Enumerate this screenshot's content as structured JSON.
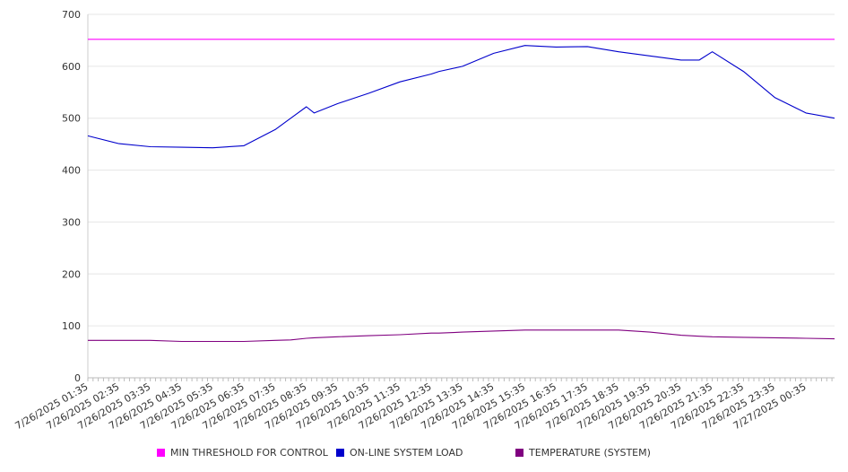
{
  "chart_data": {
    "type": "line",
    "title": "",
    "xlabel": "",
    "ylabel": "",
    "ylim": [
      0,
      700
    ],
    "yticks": [
      0,
      100,
      200,
      300,
      400,
      500,
      600,
      700
    ],
    "grid": true,
    "legend_position": "bottom",
    "x_tick_labels": [
      "7/26/2025 01:35",
      "7/26/2025 02:35",
      "7/26/2025 03:35",
      "7/26/2025 04:35",
      "7/26/2025 05:35",
      "7/26/2025 06:35",
      "7/26/2025 07:35",
      "7/26/2025 08:35",
      "7/26/2025 09:35",
      "7/26/2025 10:35",
      "7/26/2025 11:35",
      "7/26/2025 12:35",
      "7/26/2025 13:35",
      "7/26/2025 14:35",
      "7/26/2025 15:35",
      "7/26/2025 16:35",
      "7/26/2025 17:35",
      "7/26/2025 18:35",
      "7/26/2025 19:35",
      "7/26/2025 20:35",
      "7/26/2025 21:35",
      "7/26/2025 22:35",
      "7/26/2025 23:35",
      "7/27/2025 00:35"
    ],
    "x": [
      "7/26/2025 01:35",
      "7/26/2025 02:35",
      "7/26/2025 03:35",
      "7/26/2025 04:35",
      "7/26/2025 05:35",
      "7/26/2025 06:35",
      "7/26/2025 07:35",
      "7/26/2025 08:05",
      "7/26/2025 08:35",
      "7/26/2025 08:50",
      "7/26/2025 09:35",
      "7/26/2025 10:35",
      "7/26/2025 11:35",
      "7/26/2025 12:35",
      "7/26/2025 12:50",
      "7/26/2025 13:35",
      "7/26/2025 14:35",
      "7/26/2025 15:35",
      "7/26/2025 16:35",
      "7/26/2025 17:35",
      "7/26/2025 18:35",
      "7/26/2025 19:35",
      "7/26/2025 20:35",
      "7/26/2025 21:10",
      "7/26/2025 21:35",
      "7/26/2025 22:35",
      "7/26/2025 23:35",
      "7/27/2025 00:35",
      "7/27/2025 01:30"
    ],
    "series": [
      {
        "name": "MIN THRESHOLD FOR CONTROL",
        "color": "#ff00ff",
        "values": [
          652,
          652,
          652,
          652,
          652,
          652,
          652,
          652,
          652,
          652,
          652,
          652,
          652,
          652,
          652,
          652,
          652,
          652,
          652,
          652,
          652,
          652,
          652,
          652,
          652,
          652,
          652,
          652,
          652
        ]
      },
      {
        "name": "ON-LINE SYSTEM LOAD",
        "color": "#0000cc",
        "values": [
          466,
          451,
          445,
          444,
          443,
          447,
          478,
          500,
          522,
          510,
          528,
          548,
          570,
          585,
          590,
          600,
          625,
          640,
          637,
          638,
          628,
          620,
          612,
          612,
          628,
          590,
          540,
          510,
          500
        ]
      },
      {
        "name": "TEMPERATURE (SYSTEM)",
        "color": "#800080",
        "values": [
          72,
          72,
          72,
          70,
          70,
          70,
          72,
          73,
          76,
          77,
          79,
          81,
          83,
          86,
          86,
          88,
          90,
          92,
          92,
          92,
          92,
          88,
          82,
          80,
          79,
          78,
          77,
          76,
          75
        ]
      }
    ]
  }
}
